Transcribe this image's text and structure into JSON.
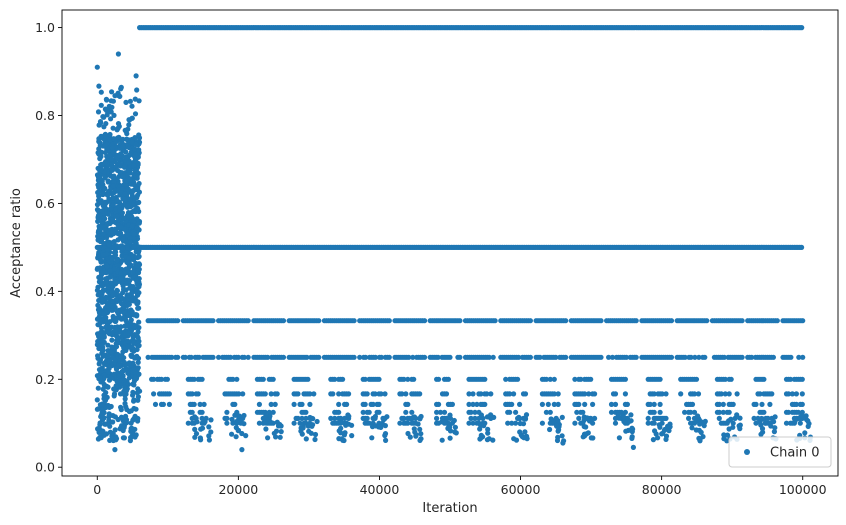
{
  "chart_data": {
    "type": "scatter",
    "title": "",
    "xlabel": "Iteration",
    "ylabel": "Acceptance ratio",
    "xlim": [
      -5000,
      105000
    ],
    "ylim": [
      -0.02,
      1.04
    ],
    "xticks": [
      0,
      20000,
      40000,
      60000,
      80000,
      100000
    ],
    "xtick_labels": [
      "0",
      "20000",
      "40000",
      "60000",
      "80000",
      "100000"
    ],
    "yticks": [
      0.0,
      0.2,
      0.4,
      0.6,
      0.8,
      1.0
    ],
    "ytick_labels": [
      "0.0",
      "0.2",
      "0.4",
      "0.6",
      "0.8",
      "1.0"
    ],
    "grid": false,
    "legend": {
      "position": "bottom-right",
      "entries": [
        "Chain 0"
      ]
    },
    "color": "#1f77b4",
    "series": [
      {
        "name": "Chain 0",
        "description_points": {
          "burn_in": {
            "x_range": [
              0,
              6000
            ],
            "y_range": [
              0.04,
              0.94
            ]
          },
          "levels": [
            {
              "y": 1.0,
              "x_range": [
                6000,
                100000
              ],
              "continuous": true
            },
            {
              "y": 0.5,
              "x_range": [
                0,
                100000
              ],
              "continuous": true
            },
            {
              "y": 0.3333,
              "x_range": [
                7000,
                100000
              ],
              "continuous": false
            },
            {
              "y": 0.25,
              "x_range": [
                7000,
                100000
              ],
              "continuous": false
            },
            {
              "y": 0.2,
              "x_range": [
                7000,
                100000
              ],
              "continuous": false
            },
            {
              "y": 0.1667,
              "x_range": [
                8000,
                100000
              ],
              "continuous": false
            },
            {
              "y": 0.1429,
              "x_range": [
                8000,
                100000
              ],
              "continuous": false
            },
            {
              "y": 0.125,
              "x_range": [
                9000,
                100000
              ],
              "continuous": false
            },
            {
              "y": 0.1111,
              "x_range": [
                9000,
                100000
              ],
              "continuous": false
            },
            {
              "y": 0.1,
              "x_range": [
                9000,
                100000
              ],
              "continuous": false
            }
          ],
          "sample_outliers": [
            {
              "x": 0,
              "y": 0.91
            },
            {
              "x": 3000,
              "y": 0.94
            },
            {
              "x": 5500,
              "y": 0.89
            },
            {
              "x": 2500,
              "y": 0.04
            },
            {
              "x": 20500,
              "y": 0.04
            },
            {
              "x": 76000,
              "y": 0.045
            },
            {
              "x": 66000,
              "y": 0.055
            }
          ]
        }
      }
    ]
  }
}
